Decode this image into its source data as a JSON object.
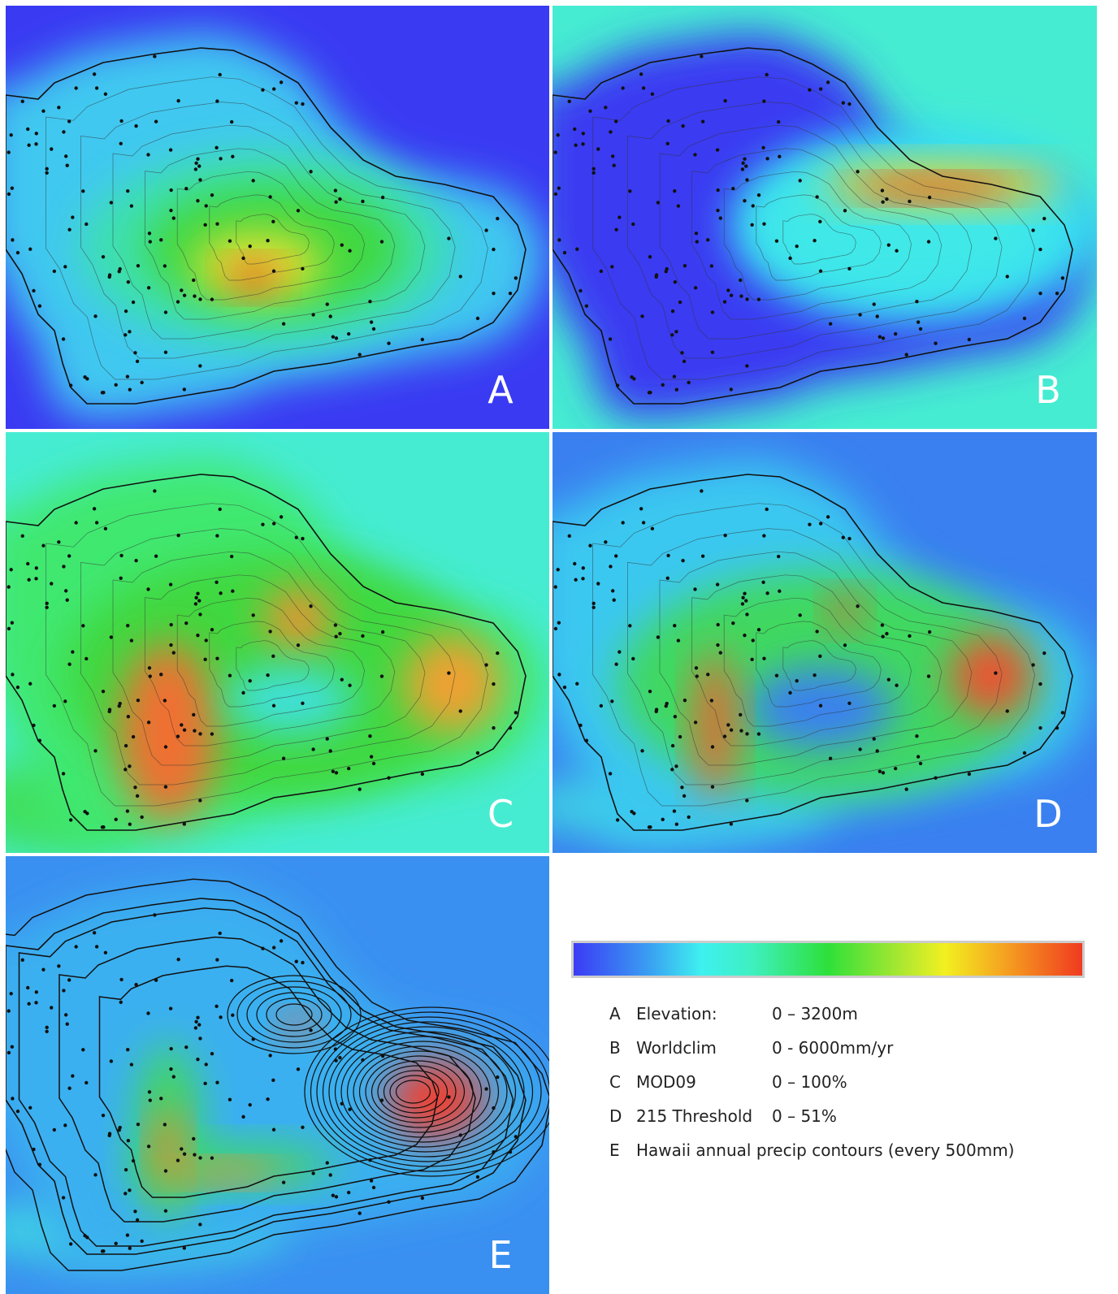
{
  "panels": [
    {
      "label": "A"
    },
    {
      "label": "B"
    },
    {
      "label": "C"
    },
    {
      "label": "D"
    },
    {
      "label": "E"
    }
  ],
  "legend": {
    "rows": [
      {
        "key": "A",
        "name": "Elevation:",
        "range": "0 – 3200m"
      },
      {
        "key": "B",
        "name": "Worldclim",
        "range": "0 - 6000mm/yr"
      },
      {
        "key": "C",
        "name": "MOD09",
        "range": "0 – 100%"
      },
      {
        "key": "D",
        "name": "215 Threshold",
        "range": "0 – 51%"
      },
      {
        "key": "E",
        "name": "Hawaii annual precip contours (every 500mm)"
      }
    ]
  }
}
